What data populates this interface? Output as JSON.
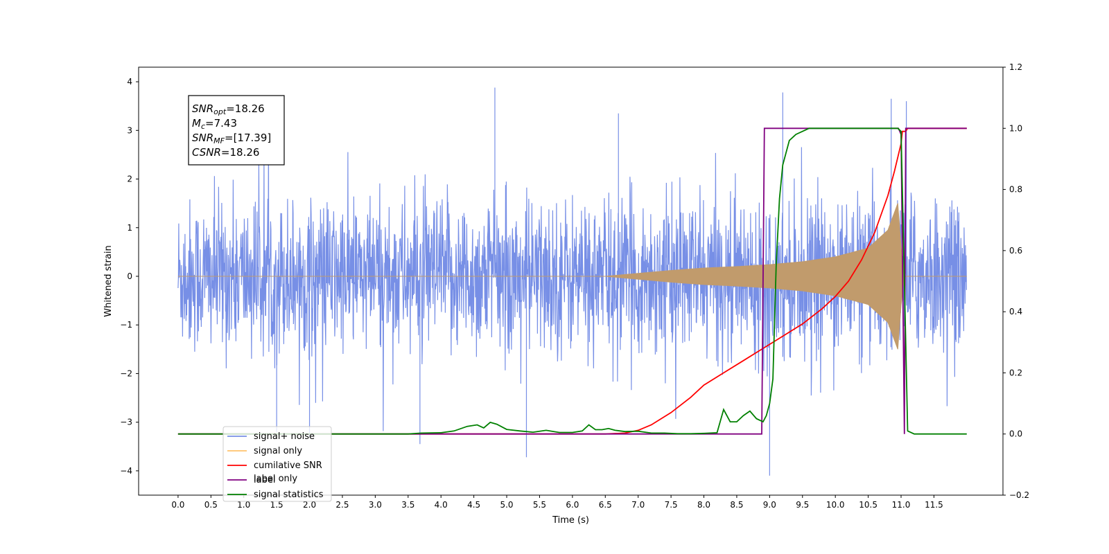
{
  "chart_data": {
    "type": "line",
    "xlabel": "Time (s)",
    "ylabel": "Whitened strain",
    "xlim": [
      -0.6,
      12.55
    ],
    "ylim_left": [
      -4.5,
      4.3
    ],
    "ylim_right": [
      -0.2,
      1.2
    ],
    "x_ticks": [
      0.0,
      0.5,
      1.0,
      1.5,
      2.0,
      2.5,
      3.0,
      3.5,
      4.0,
      4.5,
      5.0,
      5.5,
      6.0,
      6.5,
      7.0,
      7.5,
      8.0,
      8.5,
      9.0,
      9.5,
      10.0,
      10.5,
      11.0,
      11.5
    ],
    "x_tick_labels": [
      "0.0",
      "0.5",
      "1.0",
      "1.5",
      "2.0",
      "2.5",
      "3.0",
      "3.5",
      "4.0",
      "4.5",
      "5.0",
      "5.5",
      "6.0",
      "6.5",
      "7.0",
      "7.5",
      "8.0",
      "8.5",
      "9.0",
      "9.5",
      "10.0",
      "10.5",
      "11.0",
      "11.5"
    ],
    "y_left_ticks": [
      -4,
      -3,
      -2,
      -1,
      0,
      1,
      2,
      3,
      4
    ],
    "y_left_tick_labels": [
      "−4",
      "−3",
      "−2",
      "−1",
      "0",
      "1",
      "2",
      "3",
      "4"
    ],
    "y_right_ticks": [
      -0.2,
      0.0,
      0.2,
      0.4,
      0.6,
      0.8,
      1.0,
      1.2
    ],
    "y_right_tick_labels": [
      "−0.2",
      "0.0",
      "0.2",
      "0.4",
      "0.6",
      "0.8",
      "1.0",
      "1.2"
    ],
    "annotation": [
      {
        "sym": "SNR",
        "sub": "opt",
        "val": "=18.26"
      },
      {
        "sym": "M",
        "sub": "c",
        "val": "=7.43"
      },
      {
        "sym": "SNR",
        "sub": "MF",
        "val": "=[17.39]"
      },
      {
        "sym": "CSNR",
        "sub": "",
        "val": "=18.26"
      }
    ],
    "legend": [
      {
        "label": "signal+ noise",
        "color": "#778fe6"
      },
      {
        "label": "signal only",
        "color": "#ffc26b"
      },
      {
        "label": "cumilative SNR",
        "color": "#ff0000"
      },
      {
        "label": "label",
        "color": "#800080"
      },
      {
        "label": "signal statistics",
        "color": "#008000"
      }
    ],
    "legend_obscured_text": [
      "label only"
    ],
    "legend_placement": "lower-left",
    "series": [
      {
        "name": "signal+ noise",
        "axis": "left",
        "color": "#778fe6",
        "description_values": {
          "x_range": [
            0.0,
            12.0
          ],
          "typical_envelope": [
            -1.7,
            1.7
          ],
          "max": 3.88,
          "min": -4.1
        }
      },
      {
        "name": "signal only",
        "axis": "left",
        "color": "#c19b6c",
        "envelope_x": [
          6.5,
          7.0,
          7.5,
          8.0,
          8.5,
          9.0,
          9.5,
          10.0,
          10.5,
          10.8,
          10.95,
          11.0,
          11.05
        ],
        "envelope_y": [
          0.0,
          0.06,
          0.12,
          0.17,
          0.2,
          0.24,
          0.3,
          0.4,
          0.58,
          0.95,
          1.5,
          0.6,
          0.0
        ]
      },
      {
        "name": "cumilative SNR",
        "axis": "right",
        "color": "#ff0000",
        "x": [
          0.0,
          6.5,
          6.8,
          7.0,
          7.2,
          7.5,
          7.8,
          8.0,
          8.3,
          8.6,
          8.9,
          9.2,
          9.5,
          9.8,
          10.0,
          10.2,
          10.4,
          10.6,
          10.8,
          10.9,
          11.0,
          11.02,
          11.07,
          11.1,
          12.0
        ],
        "y": [
          0.0,
          0.0,
          0.003,
          0.012,
          0.03,
          0.07,
          0.12,
          0.16,
          0.2,
          0.24,
          0.28,
          0.32,
          0.36,
          0.41,
          0.45,
          0.5,
          0.57,
          0.66,
          0.78,
          0.86,
          0.95,
          0.99,
          0.99,
          1.0,
          1.0
        ]
      },
      {
        "name": "label",
        "axis": "right",
        "color": "#800080",
        "x": [
          0.0,
          8.88,
          8.92,
          10.96,
          11.0,
          11.05,
          11.07,
          12.0
        ],
        "y": [
          0.0,
          0.0,
          1.0,
          1.0,
          0.98,
          0.0,
          1.0,
          1.0
        ]
      },
      {
        "name": "signal statistics",
        "axis": "right",
        "color": "#008000",
        "x": [
          0.0,
          3.5,
          3.7,
          4.0,
          4.2,
          4.4,
          4.55,
          4.65,
          4.75,
          4.85,
          5.0,
          5.2,
          5.4,
          5.6,
          5.8,
          6.0,
          6.15,
          6.25,
          6.35,
          6.45,
          6.55,
          6.65,
          6.8,
          7.0,
          7.2,
          7.4,
          7.6,
          7.8,
          8.0,
          8.2,
          8.3,
          8.4,
          8.5,
          8.6,
          8.7,
          8.8,
          8.9,
          8.95,
          9.0,
          9.05,
          9.1,
          9.15,
          9.2,
          9.3,
          9.4,
          9.5,
          9.6,
          9.7,
          9.8,
          10.0,
          10.5,
          10.95,
          11.0,
          11.05,
          11.1,
          11.2,
          12.0
        ],
        "y": [
          0.0,
          0.0,
          0.003,
          0.004,
          0.01,
          0.025,
          0.03,
          0.02,
          0.038,
          0.032,
          0.015,
          0.01,
          0.006,
          0.012,
          0.005,
          0.005,
          0.01,
          0.03,
          0.014,
          0.014,
          0.018,
          0.012,
          0.008,
          0.009,
          0.003,
          0.003,
          0.001,
          0.001,
          0.002,
          0.004,
          0.08,
          0.04,
          0.04,
          0.06,
          0.075,
          0.05,
          0.04,
          0.06,
          0.1,
          0.18,
          0.55,
          0.77,
          0.88,
          0.96,
          0.98,
          0.99,
          1.0,
          1.0,
          1.0,
          1.0,
          1.0,
          1.0,
          0.99,
          0.5,
          0.01,
          0.0,
          0.0
        ]
      }
    ],
    "grid": false
  }
}
